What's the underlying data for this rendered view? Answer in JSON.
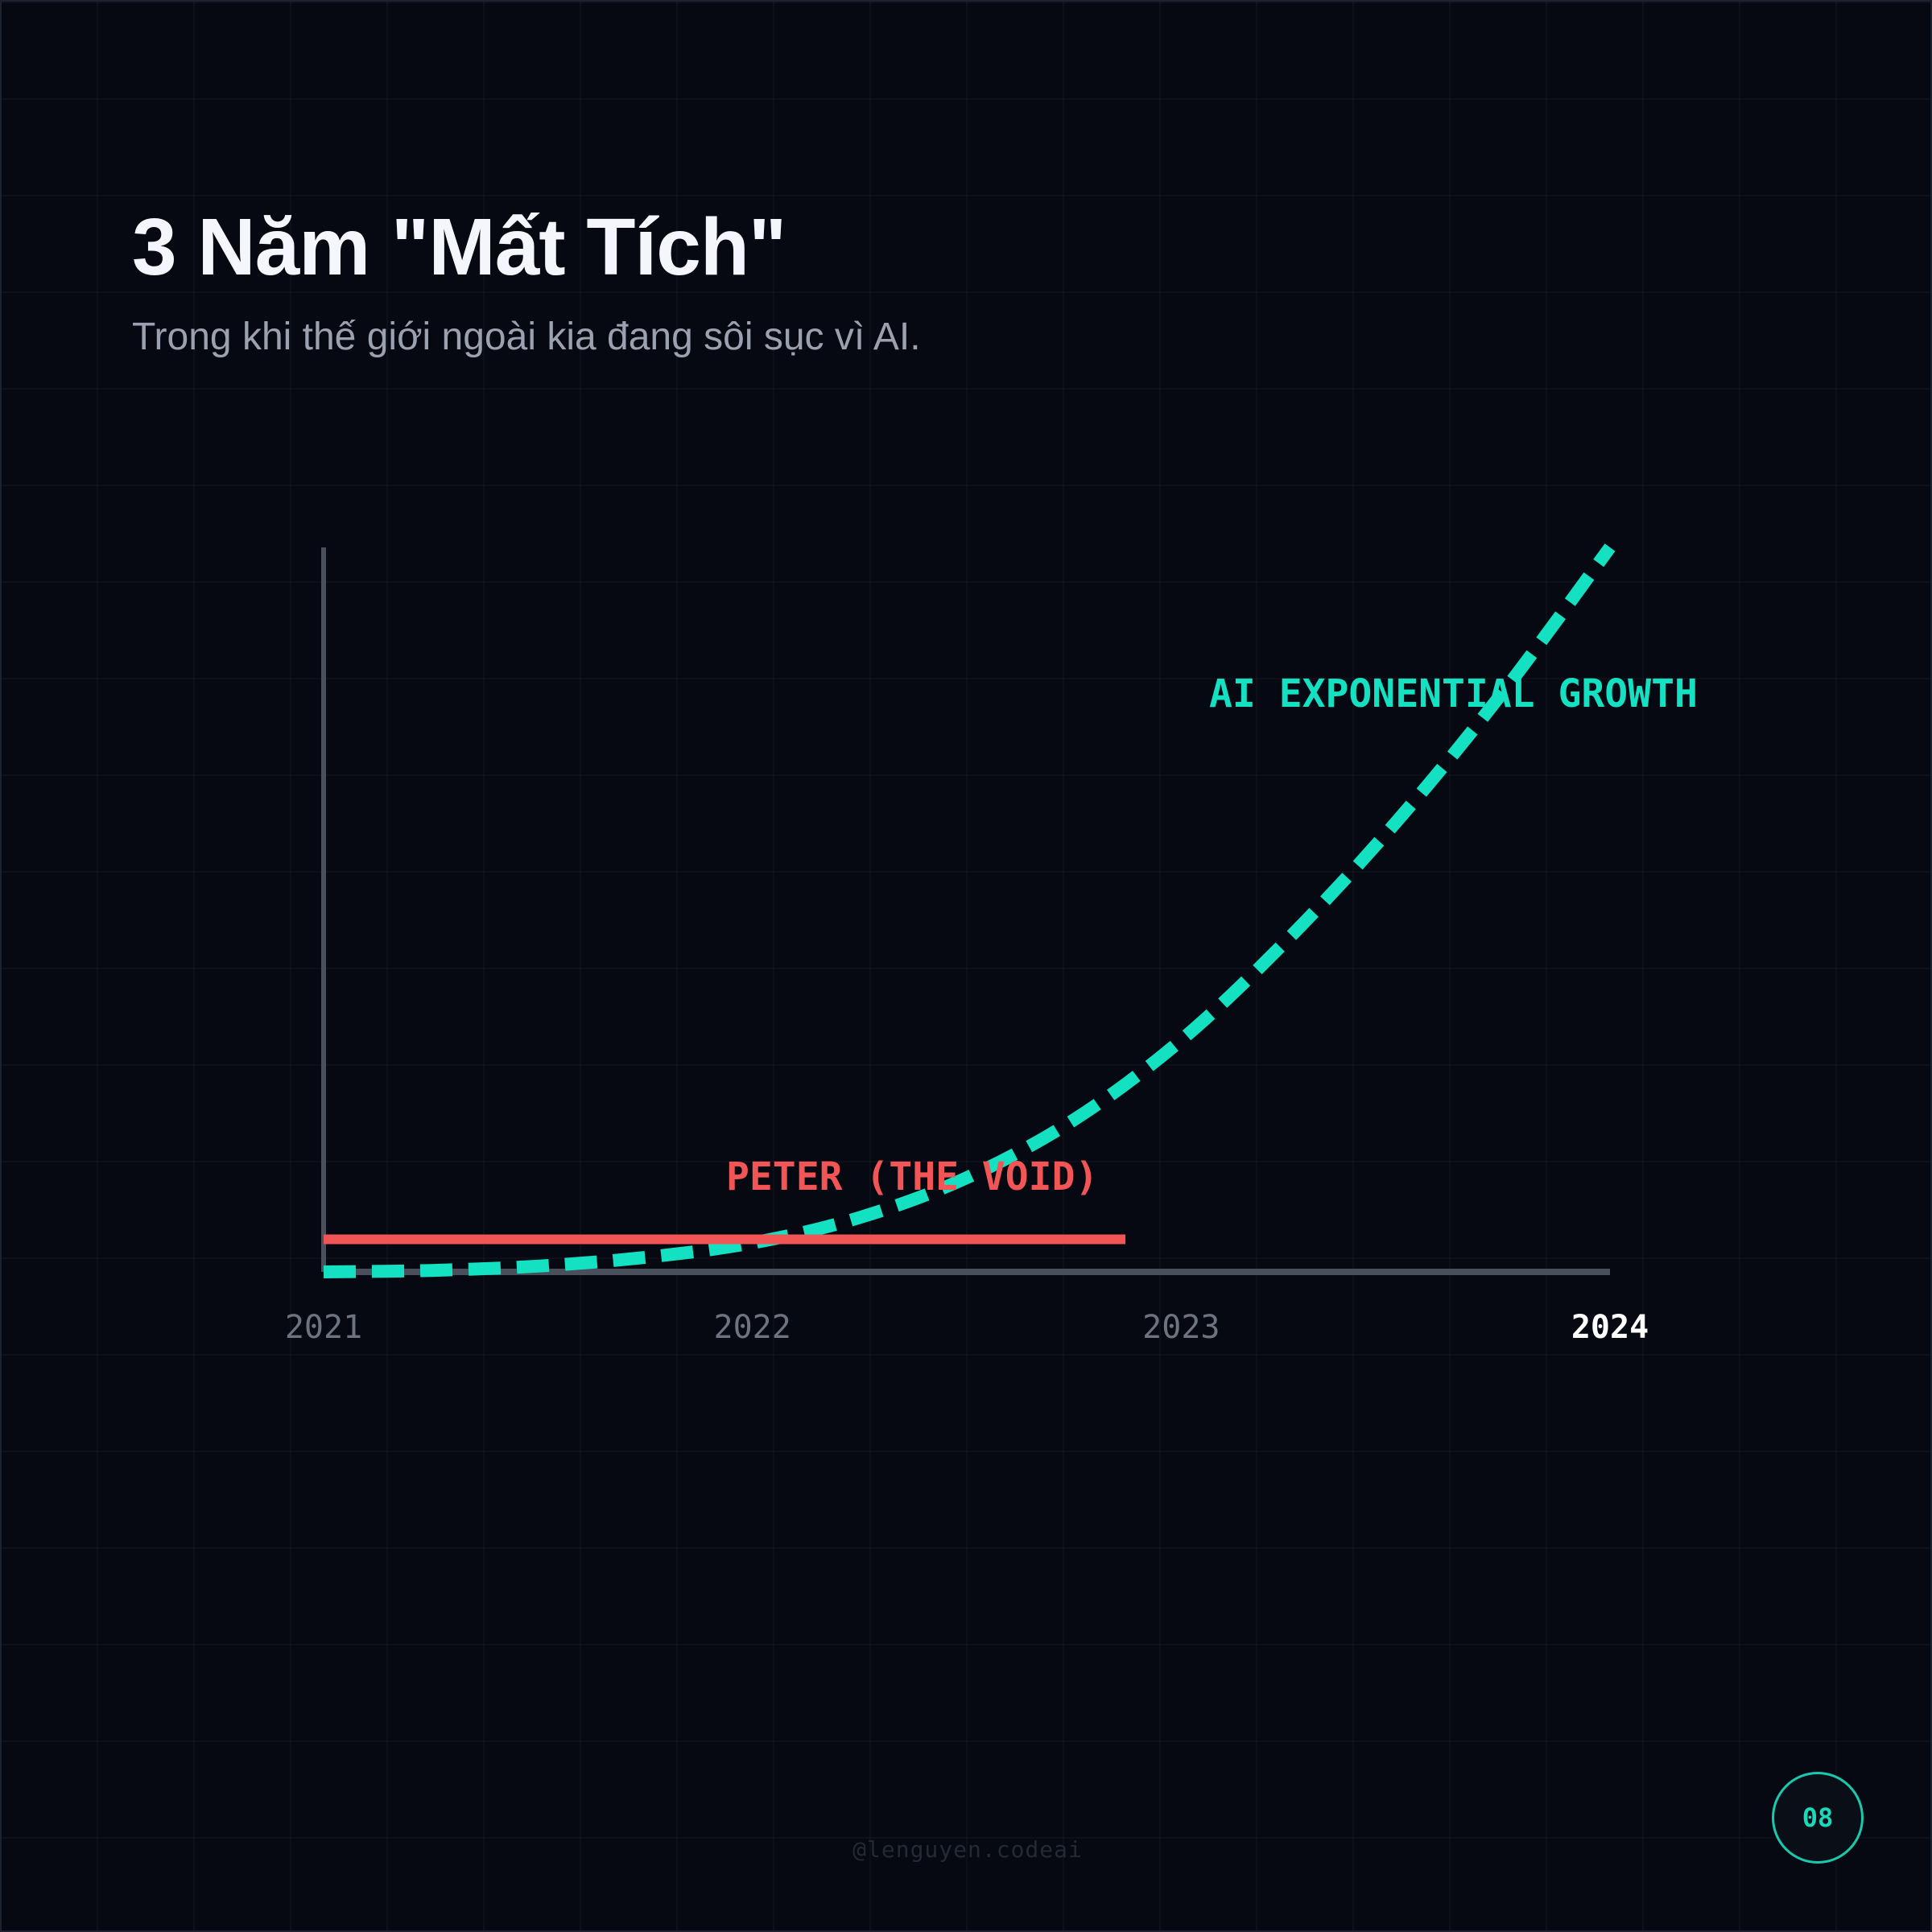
{
  "header": {
    "title": "3 Năm \"Mất Tích\"",
    "subtitle": "Trong khi thế giới ngoài kia đang sôi sục vì AI."
  },
  "footer": {
    "handle": "@lenguyen.codeai",
    "page_number": "08"
  },
  "colors": {
    "background": "#060912",
    "ai_series": "#14e0c2",
    "peter_series": "#f25555",
    "axis": "#4a4f5c",
    "tick_label": "#6e7380",
    "tick_label_highlight": "#ffffff"
  },
  "chart_data": {
    "type": "line",
    "x": [
      2021,
      2022,
      2023,
      2024
    ],
    "x_tick_labels": [
      "2021",
      "2022",
      "2023",
      "2024"
    ],
    "highlighted_tick": "2024",
    "xlim": [
      2021,
      2024
    ],
    "ylim": [
      0,
      100
    ],
    "grid": true,
    "series": [
      {
        "name": "AI EXPONENTIAL GROWTH",
        "style": "dashed",
        "color": "#14e0c2",
        "points": [
          [
            2021.0,
            0.0
          ],
          [
            2021.25,
            0.2
          ],
          [
            2021.5,
            0.8
          ],
          [
            2021.75,
            2.0
          ],
          [
            2022.0,
            4.0
          ],
          [
            2022.25,
            7.5
          ],
          [
            2022.5,
            13.0
          ],
          [
            2022.75,
            21.0
          ],
          [
            2023.0,
            32.0
          ],
          [
            2023.25,
            46.0
          ],
          [
            2023.5,
            62.0
          ],
          [
            2023.75,
            80.0
          ],
          [
            2024.0,
            100.0
          ]
        ]
      },
      {
        "name": "PETER (THE VOID)",
        "style": "solid",
        "color": "#f25555",
        "points": [
          [
            2021.0,
            4.5
          ],
          [
            2022.87,
            4.5
          ]
        ]
      }
    ]
  }
}
